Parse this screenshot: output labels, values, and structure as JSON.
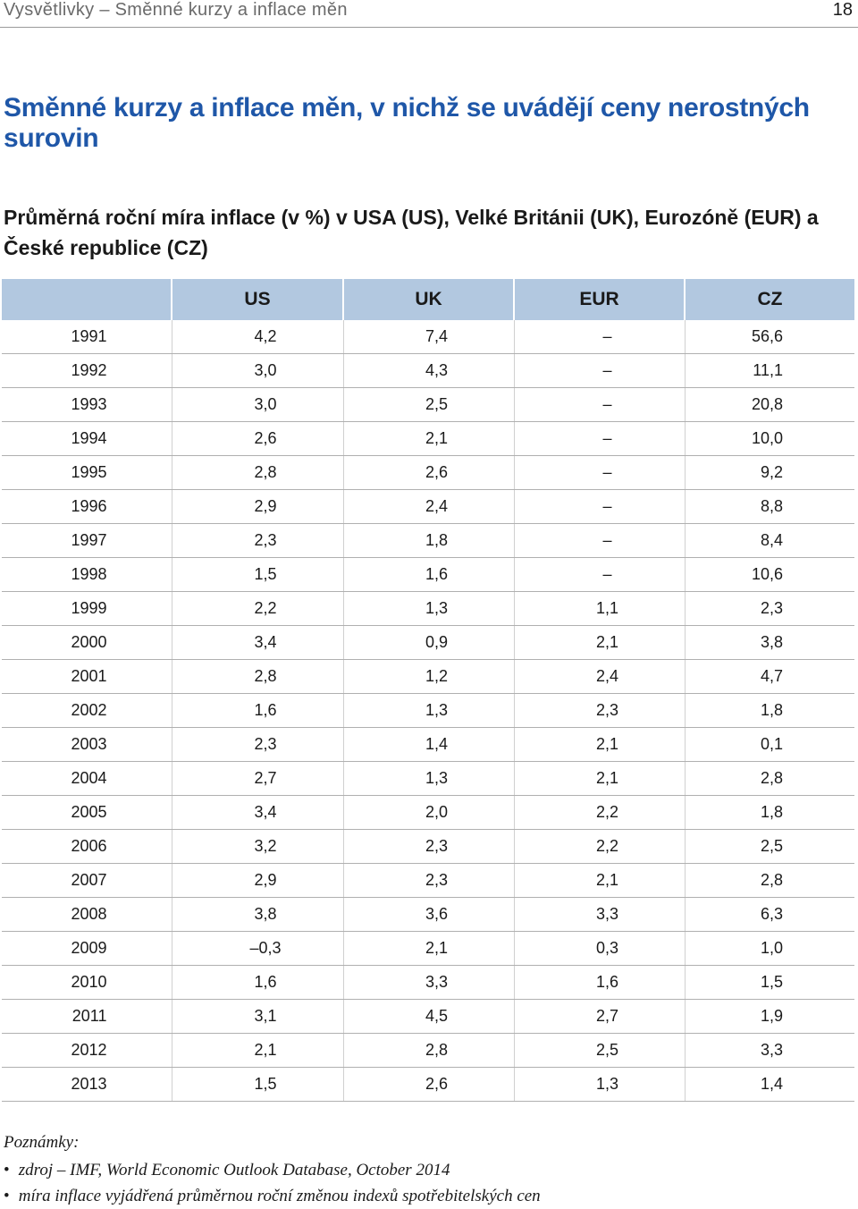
{
  "running_header": {
    "title": "Vysvětlivky – Směnné kurzy a inflace měn",
    "page_number": "18"
  },
  "main_title": "Směnné kurzy a inflace měn, v nichž se uvádějí ceny nerostných surovin",
  "subtitle": "Průměrná roční míra inflace (v %) v USA (US), Velké Británii (UK), Eurozóně (EUR) a České republice (CZ)",
  "table": {
    "columns": [
      "",
      "US",
      "UK",
      "EUR",
      "CZ"
    ],
    "rows": [
      [
        "1991",
        "4,2",
        "7,4",
        "–",
        "56,6"
      ],
      [
        "1992",
        "3,0",
        "4,3",
        "–",
        "11,1"
      ],
      [
        "1993",
        "3,0",
        "2,5",
        "–",
        "20,8"
      ],
      [
        "1994",
        "2,6",
        "2,1",
        "–",
        "10,0"
      ],
      [
        "1995",
        "2,8",
        "2,6",
        "–",
        "9,2"
      ],
      [
        "1996",
        "2,9",
        "2,4",
        "–",
        "8,8"
      ],
      [
        "1997",
        "2,3",
        "1,8",
        "–",
        "8,4"
      ],
      [
        "1998",
        "1,5",
        "1,6",
        "–",
        "10,6"
      ],
      [
        "1999",
        "2,2",
        "1,3",
        "1,1",
        "2,3"
      ],
      [
        "2000",
        "3,4",
        "0,9",
        "2,1",
        "3,8"
      ],
      [
        "2001",
        "2,8",
        "1,2",
        "2,4",
        "4,7"
      ],
      [
        "2002",
        "1,6",
        "1,3",
        "2,3",
        "1,8"
      ],
      [
        "2003",
        "2,3",
        "1,4",
        "2,1",
        "0,1"
      ],
      [
        "2004",
        "2,7",
        "1,3",
        "2,1",
        "2,8"
      ],
      [
        "2005",
        "3,4",
        "2,0",
        "2,2",
        "1,8"
      ],
      [
        "2006",
        "3,2",
        "2,3",
        "2,2",
        "2,5"
      ],
      [
        "2007",
        "2,9",
        "2,3",
        "2,1",
        "2,8"
      ],
      [
        "2008",
        "3,8",
        "3,6",
        "3,3",
        "6,3"
      ],
      [
        "2009",
        "–0,3",
        "2,1",
        "0,3",
        "1,0"
      ],
      [
        "2010",
        "1,6",
        "3,3",
        "1,6",
        "1,5"
      ],
      [
        "2011",
        "3,1",
        "4,5",
        "2,7",
        "1,9"
      ],
      [
        "2012",
        "2,1",
        "2,8",
        "2,5",
        "3,3"
      ],
      [
        "2013",
        "1,5",
        "2,6",
        "1,3",
        "1,4"
      ]
    ]
  },
  "notes": {
    "label": "Poznámky:",
    "items": [
      "zdroj – IMF, World Economic Outlook Database, October 2014",
      "míra inflace vyjádřená průměrnou roční změnou indexů spotřebitelských cen"
    ]
  },
  "colors": {
    "title_blue": "#1f57a8",
    "header_fill": "#b2c8e0"
  }
}
